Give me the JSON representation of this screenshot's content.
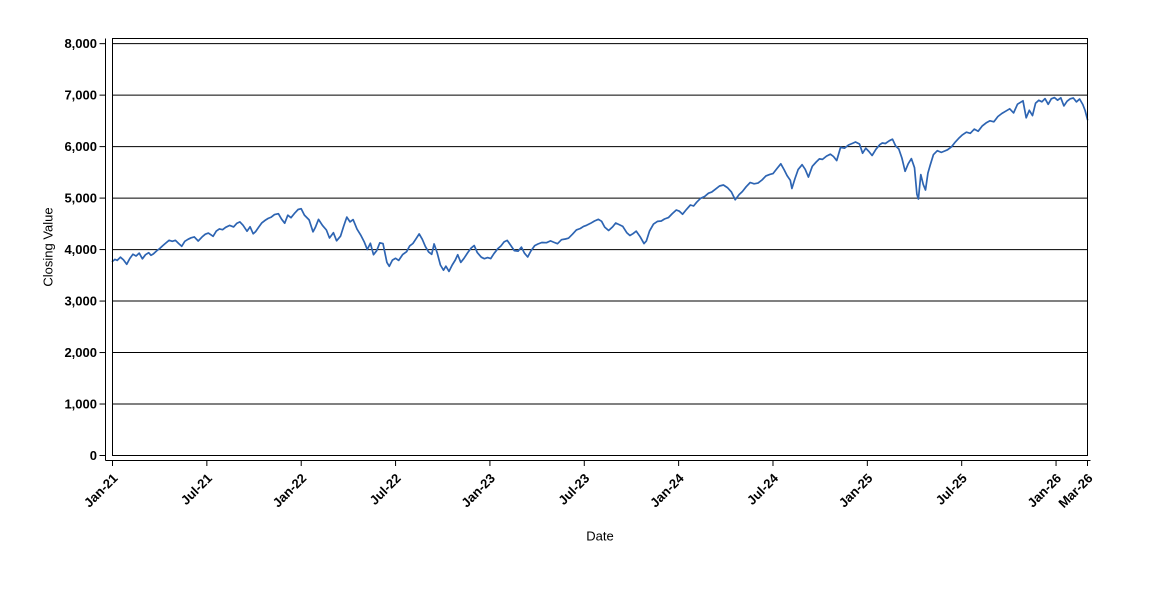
{
  "chart_data": {
    "type": "line",
    "title": "",
    "xlabel": "Date",
    "ylabel": "Closing Value",
    "x_unit": "months since Jan-2021",
    "xlim": [
      0,
      62
    ],
    "ylim": [
      0,
      8100
    ],
    "grid": "horizontal-only",
    "legend": "none",
    "background": "#ffffff",
    "axis_color": "#000000",
    "x_ticks": [
      {
        "label": "Jan-21",
        "m": 0
      },
      {
        "label": "Jul-21",
        "m": 6
      },
      {
        "label": "Jan-22",
        "m": 12
      },
      {
        "label": "Jul-22",
        "m": 18
      },
      {
        "label": "Jan-23",
        "m": 24
      },
      {
        "label": "Jul-23",
        "m": 30
      },
      {
        "label": "Jan-24",
        "m": 36
      },
      {
        "label": "Jul-24",
        "m": 42
      },
      {
        "label": "Jan-25",
        "m": 48
      },
      {
        "label": "Jul-25",
        "m": 54
      },
      {
        "label": "Jan-26",
        "m": 60
      },
      {
        "label": "Mar-26",
        "m": 62
      }
    ],
    "y_ticks": [
      {
        "label": "0",
        "v": 0
      },
      {
        "label": "1,000",
        "v": 1000
      },
      {
        "label": "2,000",
        "v": 2000
      },
      {
        "label": "3,000",
        "v": 3000
      },
      {
        "label": "4,000",
        "v": 4000
      },
      {
        "label": "5,000",
        "v": 5000
      },
      {
        "label": "6,000",
        "v": 6000
      },
      {
        "label": "7,000",
        "v": 7000
      },
      {
        "label": "8,000",
        "v": 8000
      }
    ],
    "series": [
      {
        "name": "Closing Value",
        "color": "#2d64b2",
        "points": [
          [
            0,
            3770
          ],
          [
            0.15,
            3810
          ],
          [
            0.3,
            3790
          ],
          [
            0.5,
            3852
          ],
          [
            0.7,
            3800
          ],
          [
            0.9,
            3714
          ],
          [
            1.1,
            3826
          ],
          [
            1.3,
            3909
          ],
          [
            1.5,
            3875
          ],
          [
            1.7,
            3932
          ],
          [
            1.9,
            3820
          ],
          [
            2.1,
            3901
          ],
          [
            2.3,
            3940
          ],
          [
            2.45,
            3889
          ],
          [
            2.6,
            3915
          ],
          [
            2.8,
            3972
          ],
          [
            3.0,
            4020
          ],
          [
            3.2,
            4077
          ],
          [
            3.4,
            4129
          ],
          [
            3.6,
            4180
          ],
          [
            3.8,
            4160
          ],
          [
            4.0,
            4181
          ],
          [
            4.2,
            4120
          ],
          [
            4.4,
            4063
          ],
          [
            4.6,
            4160
          ],
          [
            4.8,
            4200
          ],
          [
            5.0,
            4229
          ],
          [
            5.2,
            4247
          ],
          [
            5.45,
            4166
          ],
          [
            5.7,
            4246
          ],
          [
            5.9,
            4298
          ],
          [
            6.1,
            4320
          ],
          [
            6.4,
            4258
          ],
          [
            6.6,
            4358
          ],
          [
            6.8,
            4402
          ],
          [
            7.0,
            4387
          ],
          [
            7.2,
            4432
          ],
          [
            7.45,
            4470
          ],
          [
            7.7,
            4441
          ],
          [
            7.9,
            4509
          ],
          [
            8.1,
            4537
          ],
          [
            8.3,
            4473
          ],
          [
            8.55,
            4357
          ],
          [
            8.75,
            4443
          ],
          [
            8.95,
            4307
          ],
          [
            9.1,
            4350
          ],
          [
            9.3,
            4438
          ],
          [
            9.5,
            4520
          ],
          [
            9.7,
            4566
          ],
          [
            9.9,
            4605
          ],
          [
            10.1,
            4630
          ],
          [
            10.3,
            4680
          ],
          [
            10.55,
            4697
          ],
          [
            10.75,
            4590
          ],
          [
            10.95,
            4513
          ],
          [
            11.15,
            4667
          ],
          [
            11.35,
            4620
          ],
          [
            11.6,
            4713
          ],
          [
            11.8,
            4778
          ],
          [
            12.0,
            4793
          ],
          [
            12.2,
            4670
          ],
          [
            12.5,
            4577
          ],
          [
            12.75,
            4346
          ],
          [
            12.9,
            4432
          ],
          [
            13.1,
            4587
          ],
          [
            13.35,
            4471
          ],
          [
            13.6,
            4380
          ],
          [
            13.8,
            4225
          ],
          [
            14.05,
            4328
          ],
          [
            14.25,
            4170
          ],
          [
            14.5,
            4260
          ],
          [
            14.7,
            4456
          ],
          [
            14.9,
            4631
          ],
          [
            15.1,
            4538
          ],
          [
            15.3,
            4582
          ],
          [
            15.55,
            4397
          ],
          [
            15.8,
            4271
          ],
          [
            16.0,
            4155
          ],
          [
            16.2,
            4001
          ],
          [
            16.4,
            4121
          ],
          [
            16.6,
            3901
          ],
          [
            16.8,
            3978
          ],
          [
            17.0,
            4132
          ],
          [
            17.2,
            4117
          ],
          [
            17.45,
            3750
          ],
          [
            17.6,
            3675
          ],
          [
            17.8,
            3795
          ],
          [
            18.0,
            3830
          ],
          [
            18.2,
            3790
          ],
          [
            18.45,
            3902
          ],
          [
            18.7,
            3959
          ],
          [
            18.9,
            4072
          ],
          [
            19.1,
            4118
          ],
          [
            19.3,
            4210
          ],
          [
            19.5,
            4305
          ],
          [
            19.7,
            4199
          ],
          [
            19.9,
            4057
          ],
          [
            20.1,
            3955
          ],
          [
            20.3,
            3908
          ],
          [
            20.45,
            4110
          ],
          [
            20.65,
            3935
          ],
          [
            20.85,
            3700
          ],
          [
            21.05,
            3600
          ],
          [
            21.2,
            3678
          ],
          [
            21.4,
            3577
          ],
          [
            21.6,
            3700
          ],
          [
            21.8,
            3797
          ],
          [
            21.95,
            3901
          ],
          [
            22.15,
            3750
          ],
          [
            22.35,
            3830
          ],
          [
            22.6,
            3946
          ],
          [
            22.8,
            4027
          ],
          [
            23.0,
            4080
          ],
          [
            23.2,
            3941
          ],
          [
            23.45,
            3852
          ],
          [
            23.65,
            3822
          ],
          [
            23.85,
            3844
          ],
          [
            24.05,
            3825
          ],
          [
            24.25,
            3920
          ],
          [
            24.5,
            4017
          ],
          [
            24.7,
            4070
          ],
          [
            24.9,
            4150
          ],
          [
            25.1,
            4179
          ],
          [
            25.3,
            4090
          ],
          [
            25.55,
            3980
          ],
          [
            25.8,
            3970
          ],
          [
            26.0,
            4048
          ],
          [
            26.2,
            3930
          ],
          [
            26.4,
            3856
          ],
          [
            26.6,
            3971
          ],
          [
            26.85,
            4078
          ],
          [
            27.05,
            4109
          ],
          [
            27.3,
            4138
          ],
          [
            27.6,
            4134
          ],
          [
            27.85,
            4169
          ],
          [
            28.1,
            4138
          ],
          [
            28.3,
            4115
          ],
          [
            28.55,
            4192
          ],
          [
            28.8,
            4206
          ],
          [
            29.0,
            4221
          ],
          [
            29.25,
            4298
          ],
          [
            29.5,
            4382
          ],
          [
            29.75,
            4410
          ],
          [
            29.95,
            4450
          ],
          [
            30.15,
            4472
          ],
          [
            30.4,
            4510
          ],
          [
            30.65,
            4555
          ],
          [
            30.9,
            4589
          ],
          [
            31.1,
            4549
          ],
          [
            31.3,
            4437
          ],
          [
            31.55,
            4370
          ],
          [
            31.8,
            4441
          ],
          [
            32.0,
            4516
          ],
          [
            32.2,
            4487
          ],
          [
            32.45,
            4451
          ],
          [
            32.7,
            4330
          ],
          [
            32.9,
            4274
          ],
          [
            33.1,
            4308
          ],
          [
            33.3,
            4358
          ],
          [
            33.55,
            4250
          ],
          [
            33.8,
            4117
          ],
          [
            33.95,
            4168
          ],
          [
            34.15,
            4358
          ],
          [
            34.4,
            4495
          ],
          [
            34.65,
            4547
          ],
          [
            34.9,
            4556
          ],
          [
            35.1,
            4594
          ],
          [
            35.35,
            4622
          ],
          [
            35.6,
            4698
          ],
          [
            35.85,
            4769
          ],
          [
            36.05,
            4745
          ],
          [
            36.25,
            4688
          ],
          [
            36.5,
            4781
          ],
          [
            36.75,
            4865
          ],
          [
            36.95,
            4846
          ],
          [
            37.15,
            4920
          ],
          [
            37.4,
            4995
          ],
          [
            37.65,
            5030
          ],
          [
            37.9,
            5096
          ],
          [
            38.1,
            5117
          ],
          [
            38.35,
            5175
          ],
          [
            38.6,
            5234
          ],
          [
            38.85,
            5254
          ],
          [
            39.1,
            5204
          ],
          [
            39.35,
            5123
          ],
          [
            39.6,
            4967
          ],
          [
            39.85,
            5070
          ],
          [
            40.05,
            5127
          ],
          [
            40.3,
            5222
          ],
          [
            40.55,
            5303
          ],
          [
            40.8,
            5277
          ],
          [
            41.05,
            5291
          ],
          [
            41.3,
            5352
          ],
          [
            41.55,
            5431
          ],
          [
            41.8,
            5460
          ],
          [
            42.0,
            5475
          ],
          [
            42.25,
            5572
          ],
          [
            42.5,
            5667
          ],
          [
            42.7,
            5555
          ],
          [
            42.9,
            5436
          ],
          [
            43.1,
            5346
          ],
          [
            43.2,
            5186
          ],
          [
            43.4,
            5380
          ],
          [
            43.6,
            5554
          ],
          [
            43.85,
            5648
          ],
          [
            44.05,
            5560
          ],
          [
            44.25,
            5408
          ],
          [
            44.5,
            5618
          ],
          [
            44.75,
            5702
          ],
          [
            44.95,
            5762
          ],
          [
            45.15,
            5751
          ],
          [
            45.4,
            5815
          ],
          [
            45.65,
            5853
          ],
          [
            45.85,
            5808
          ],
          [
            46.05,
            5728
          ],
          [
            46.3,
            5987
          ],
          [
            46.55,
            5969
          ],
          [
            46.8,
            6032
          ],
          [
            47.05,
            6062
          ],
          [
            47.25,
            6090
          ],
          [
            47.5,
            6051
          ],
          [
            47.7,
            5872
          ],
          [
            47.9,
            5970
          ],
          [
            48.1,
            5906
          ],
          [
            48.3,
            5827
          ],
          [
            48.55,
            5949
          ],
          [
            48.8,
            6040
          ],
          [
            48.95,
            6071
          ],
          [
            49.15,
            6061
          ],
          [
            49.4,
            6115
          ],
          [
            49.6,
            6144
          ],
          [
            49.8,
            6013
          ],
          [
            50.0,
            5954
          ],
          [
            50.2,
            5778
          ],
          [
            50.4,
            5521
          ],
          [
            50.6,
            5667
          ],
          [
            50.8,
            5767
          ],
          [
            51.0,
            5590
          ],
          [
            51.15,
            5074
          ],
          [
            51.25,
            4983
          ],
          [
            51.4,
            5456
          ],
          [
            51.55,
            5268
          ],
          [
            51.7,
            5158
          ],
          [
            51.85,
            5484
          ],
          [
            52.0,
            5640
          ],
          [
            52.2,
            5842
          ],
          [
            52.45,
            5921
          ],
          [
            52.7,
            5888
          ],
          [
            52.9,
            5912
          ],
          [
            53.1,
            5939
          ],
          [
            53.35,
            5997
          ],
          [
            53.6,
            6092
          ],
          [
            53.85,
            6173
          ],
          [
            54.05,
            6230
          ],
          [
            54.3,
            6280
          ],
          [
            54.55,
            6259
          ],
          [
            54.8,
            6340
          ],
          [
            55.05,
            6299
          ],
          [
            55.3,
            6399
          ],
          [
            55.55,
            6460
          ],
          [
            55.8,
            6502
          ],
          [
            56.05,
            6481
          ],
          [
            56.3,
            6584
          ],
          [
            56.55,
            6644
          ],
          [
            56.8,
            6688
          ],
          [
            57.05,
            6735
          ],
          [
            57.3,
            6654
          ],
          [
            57.55,
            6823
          ],
          [
            57.9,
            6890
          ],
          [
            58.1,
            6560
          ],
          [
            58.3,
            6705
          ],
          [
            58.5,
            6602
          ],
          [
            58.7,
            6846
          ],
          [
            58.9,
            6900
          ],
          [
            59.1,
            6870
          ],
          [
            59.3,
            6932
          ],
          [
            59.5,
            6822
          ],
          [
            59.7,
            6929
          ],
          [
            59.9,
            6952
          ],
          [
            60.1,
            6901
          ],
          [
            60.3,
            6949
          ],
          [
            60.5,
            6791
          ],
          [
            60.7,
            6882
          ],
          [
            60.9,
            6928
          ],
          [
            61.1,
            6944
          ],
          [
            61.3,
            6868
          ],
          [
            61.5,
            6925
          ],
          [
            61.7,
            6818
          ],
          [
            61.85,
            6701
          ],
          [
            62.0,
            6522
          ]
        ]
      }
    ]
  }
}
